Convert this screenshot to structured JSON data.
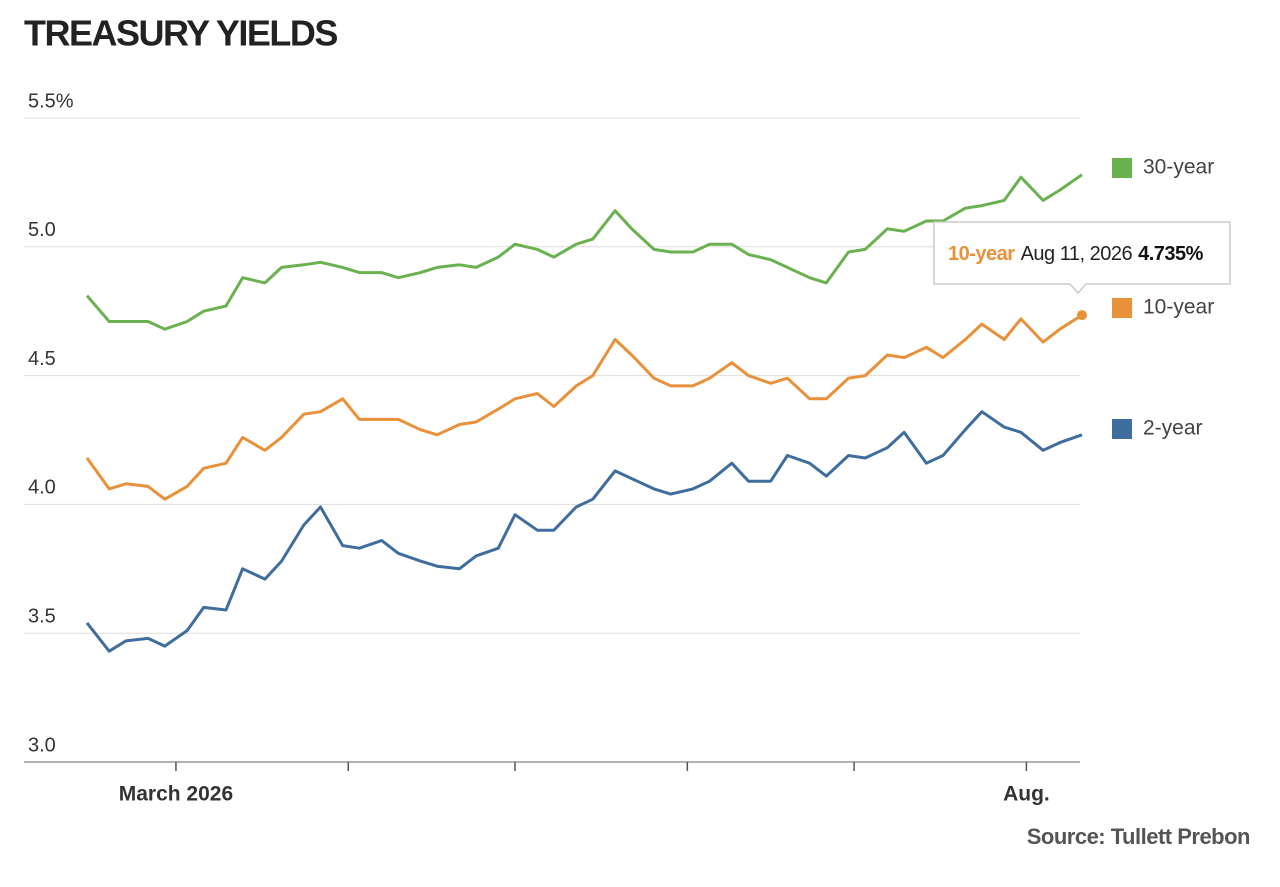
{
  "chart_data": {
    "type": "line",
    "title": "TREASURY YIELDS",
    "source": "Source: Tullett Prebon",
    "x": [
      "2026-02-13",
      "2026-02-17",
      "2026-02-20",
      "2026-02-24",
      "2026-02-27",
      "2026-03-03",
      "2026-03-06",
      "2026-03-10",
      "2026-03-13",
      "2026-03-17",
      "2026-03-20",
      "2026-03-24",
      "2026-03-27",
      "2026-03-31",
      "2026-04-03",
      "2026-04-07",
      "2026-04-10",
      "2026-04-14",
      "2026-04-17",
      "2026-04-21",
      "2026-04-24",
      "2026-04-28",
      "2026-05-01",
      "2026-05-05",
      "2026-05-08",
      "2026-05-12",
      "2026-05-15",
      "2026-05-19",
      "2026-05-22",
      "2026-05-26",
      "2026-05-29",
      "2026-06-02",
      "2026-06-05",
      "2026-06-09",
      "2026-06-12",
      "2026-06-16",
      "2026-06-19",
      "2026-06-23",
      "2026-06-26",
      "2026-06-30",
      "2026-07-03",
      "2026-07-07",
      "2026-07-10",
      "2026-07-14",
      "2026-07-17",
      "2026-07-21",
      "2026-07-24",
      "2026-07-28",
      "2026-07-31",
      "2026-08-04",
      "2026-08-07",
      "2026-08-11"
    ],
    "series": [
      {
        "name": "30-year",
        "color": "#6ab150",
        "values": [
          4.81,
          4.71,
          4.71,
          4.71,
          4.68,
          4.71,
          4.75,
          4.77,
          4.88,
          4.86,
          4.92,
          4.93,
          4.94,
          4.92,
          4.9,
          4.9,
          4.88,
          4.9,
          4.92,
          4.93,
          4.92,
          4.96,
          5.01,
          4.99,
          4.96,
          5.01,
          5.03,
          5.14,
          5.07,
          4.99,
          4.98,
          4.98,
          5.01,
          5.01,
          4.97,
          4.95,
          4.92,
          4.88,
          4.86,
          4.98,
          4.99,
          5.07,
          5.06,
          5.1,
          5.1,
          5.15,
          5.16,
          5.18,
          5.27,
          5.18,
          5.22,
          5.28
        ]
      },
      {
        "name": "10-year",
        "color": "#e8913a",
        "values": [
          4.18,
          4.06,
          4.08,
          4.07,
          4.02,
          4.07,
          4.14,
          4.16,
          4.26,
          4.21,
          4.26,
          4.35,
          4.36,
          4.41,
          4.33,
          4.33,
          4.33,
          4.29,
          4.27,
          4.31,
          4.32,
          4.37,
          4.41,
          4.43,
          4.38,
          4.46,
          4.5,
          4.64,
          4.58,
          4.49,
          4.46,
          4.46,
          4.49,
          4.55,
          4.5,
          4.47,
          4.49,
          4.41,
          4.41,
          4.49,
          4.5,
          4.58,
          4.57,
          4.61,
          4.57,
          4.64,
          4.7,
          4.64,
          4.72,
          4.63,
          4.68,
          4.735
        ]
      },
      {
        "name": "2-year",
        "color": "#3f6e9e",
        "values": [
          3.54,
          3.43,
          3.47,
          3.48,
          3.45,
          3.51,
          3.6,
          3.59,
          3.75,
          3.71,
          3.78,
          3.92,
          3.99,
          3.84,
          3.83,
          3.86,
          3.81,
          3.78,
          3.76,
          3.75,
          3.8,
          3.83,
          3.96,
          3.9,
          3.9,
          3.99,
          4.02,
          4.13,
          4.1,
          4.06,
          4.04,
          4.06,
          4.09,
          4.16,
          4.09,
          4.09,
          4.19,
          4.16,
          4.11,
          4.19,
          4.18,
          4.22,
          4.28,
          4.16,
          4.19,
          4.29,
          4.36,
          4.3,
          4.28,
          4.21,
          4.24,
          4.27
        ]
      }
    ],
    "xlim": [
      "2026-02-13",
      "2026-08-11"
    ],
    "xticks": [
      {
        "value": "2026-03-01",
        "label": "March 2026"
      },
      {
        "value": "2026-04-01",
        "label": null
      },
      {
        "value": "2026-05-01",
        "label": null
      },
      {
        "value": "2026-06-01",
        "label": null
      },
      {
        "value": "2026-07-01",
        "label": null
      },
      {
        "value": "2026-08-01",
        "label": "Aug."
      }
    ],
    "ylim": [
      3.0,
      5.5
    ],
    "yticks": [
      {
        "value": 3.0,
        "label": "3.0"
      },
      3.5,
      {
        "value": 4.0,
        "label": "4.0"
      },
      4.5,
      {
        "value": 5.0,
        "label": "5.0"
      },
      {
        "value": 5.5,
        "label": "5.5%"
      }
    ],
    "grid": true,
    "tooltip": {
      "series": 1,
      "index": 51,
      "date_label": "Aug 11, 2026",
      "value": 4.735,
      "value_label": "4.735%"
    }
  }
}
